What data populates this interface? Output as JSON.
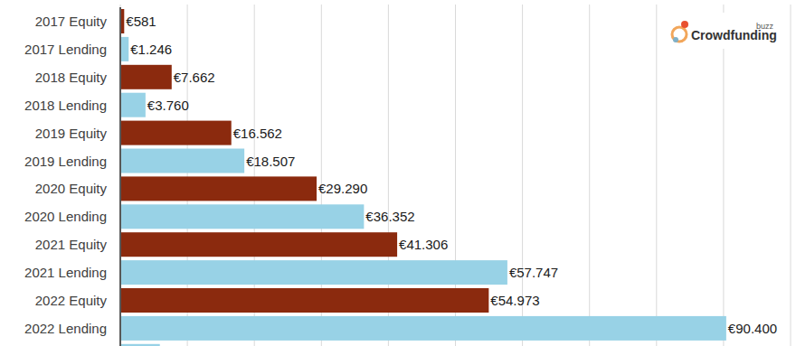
{
  "chart_data": {
    "type": "bar",
    "orientation": "horizontal",
    "categories": [
      "2017 Equity",
      "2017 Lending",
      "2018 Equity",
      "2018 Lending",
      "2019 Equity",
      "2019 Lending",
      "2020 Equity",
      "2020 Lending",
      "2021 Equity",
      "2021 Lending",
      "2022 Equity",
      "2022 Lending",
      null
    ],
    "values": [
      581,
      1246,
      7662,
      3760,
      16562,
      18507,
      29290,
      36352,
      41306,
      57747,
      54973,
      90400,
      5900
    ],
    "value_labels": [
      "€581",
      "€1.246",
      "€7.662",
      "€3.760",
      "€16.562",
      "€18.507",
      "€29.290",
      "€36.352",
      "€41.306",
      "€57.747",
      "€54.973",
      "€90.400",
      null
    ],
    "colors": [
      "#8b2a0e",
      "#98d2e6",
      "#8b2a0e",
      "#98d2e6",
      "#8b2a0e",
      "#98d2e6",
      "#8b2a0e",
      "#98d2e6",
      "#8b2a0e",
      "#98d2e6",
      "#8b2a0e",
      "#98d2e6",
      "#98d2e6"
    ],
    "xlim": [
      0,
      100000
    ],
    "xticks": [
      0,
      10000,
      20000,
      30000,
      40000,
      50000,
      60000,
      70000,
      80000,
      90000,
      100000
    ],
    "grid": true,
    "data_labels": true,
    "tick_labels": "y",
    "annotations": [
      "Crowdfunding",
      "buzz"
    ]
  }
}
